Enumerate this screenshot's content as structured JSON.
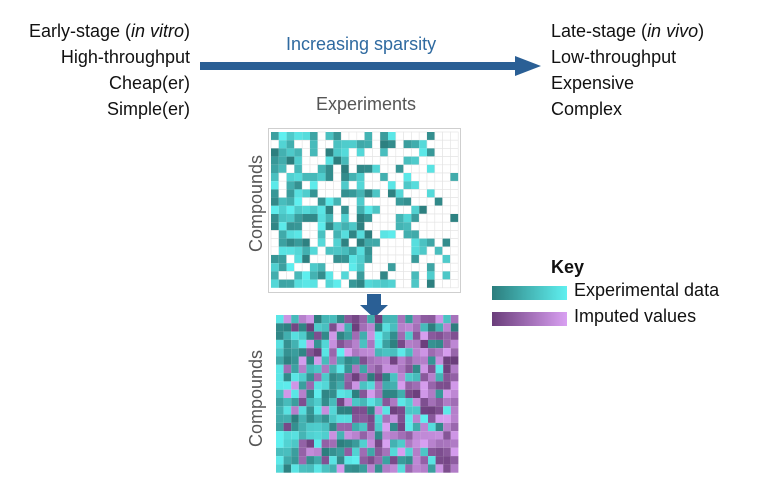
{
  "left": {
    "line1_prefix": "Early-stage (",
    "line1_italic": "in vitro",
    "line1_suffix": ")",
    "line2": "High-throughput",
    "line3": "Cheap(er)",
    "line4": "Simple(er)"
  },
  "right": {
    "line1_prefix": "Late-stage (",
    "line1_italic": "in vivo",
    "line1_suffix": ")",
    "line2": "Low-throughput",
    "line3": "Expensive",
    "line4": "Complex"
  },
  "arrow_label": "Increasing sparsity",
  "experiments_label": "Experiments",
  "compounds_label_top": "Compounds",
  "compounds_label_bottom": "Compounds",
  "key": {
    "title": "Key",
    "experimental_label": "Experimental data",
    "imputed_label": "Imputed values"
  },
  "colors": {
    "arrow": "#2a5f95",
    "exp_dark": "#2c7d7d",
    "exp_light": "#5ff0f0",
    "imp_dark": "#6a3d7a",
    "imp_light": "#d9a0f2",
    "grid_line": "#e3e3e3"
  },
  "matrix": {
    "rows": 19,
    "cols": 24
  }
}
